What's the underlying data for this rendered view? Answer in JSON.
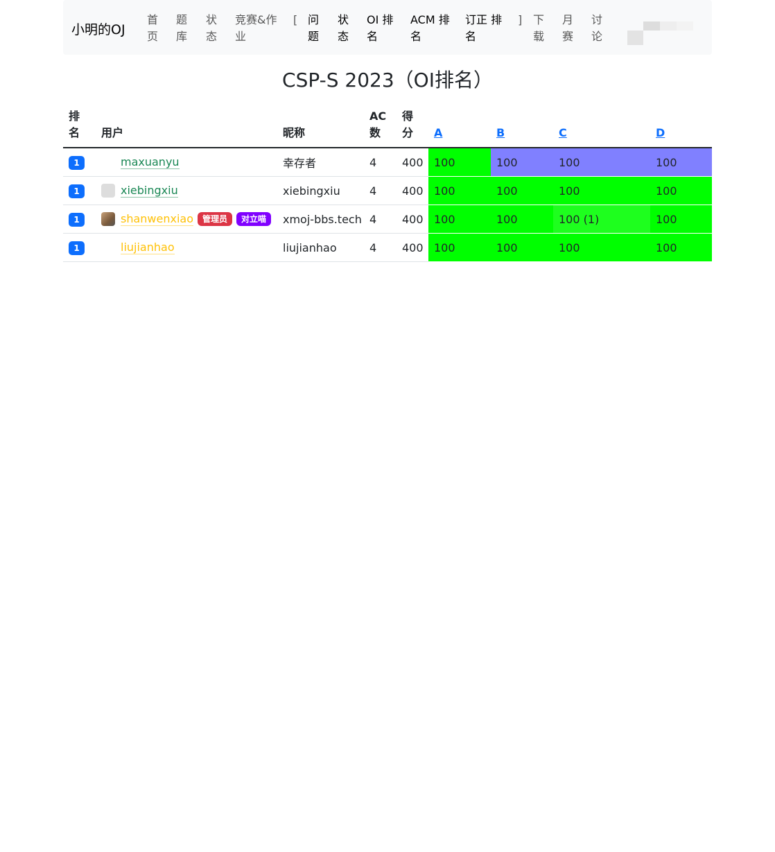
{
  "nav": {
    "brand": "小明的OJ",
    "items": [
      {
        "label": "首页",
        "dark": false
      },
      {
        "label": "题库",
        "dark": false
      },
      {
        "label": "状态",
        "dark": false
      },
      {
        "label": "竞赛&作业",
        "dark": false
      },
      {
        "label": "[",
        "dark": false
      },
      {
        "label": "问题",
        "dark": true
      },
      {
        "label": "状态",
        "dark": true
      },
      {
        "label": "OI 排名",
        "dark": true
      },
      {
        "label": "ACM 排名",
        "dark": true
      },
      {
        "label": "订正 排名",
        "dark": true
      },
      {
        "label": "]",
        "dark": false
      },
      {
        "label": "下载",
        "dark": false
      },
      {
        "label": "月赛",
        "dark": false
      },
      {
        "label": "讨论",
        "dark": false
      }
    ]
  },
  "title": "CSP-S 2023（OI排名）",
  "table": {
    "headers": {
      "rank": "排名",
      "user": "用户",
      "nick": "昵称",
      "ac": "AC数",
      "score": "得分",
      "problems": [
        "A",
        "B",
        "C",
        "D"
      ]
    },
    "colors": {
      "ac": "#00ff00",
      "first_blood": "#8080ff",
      "ac_retry": "#1eff1e"
    },
    "rows": [
      {
        "rank": "1",
        "user": "maxuanyu",
        "user_color": "green",
        "avatar": "none",
        "badges": [],
        "nick": "幸存者",
        "ac": "4",
        "score": "400",
        "cells": [
          {
            "v": "100",
            "c": "ac"
          },
          {
            "v": "100",
            "c": "first_blood"
          },
          {
            "v": "100",
            "c": "first_blood"
          },
          {
            "v": "100",
            "c": "first_blood"
          }
        ]
      },
      {
        "rank": "1",
        "user": "xiebingxiu",
        "user_color": "green",
        "avatar": "default",
        "badges": [],
        "nick": "xiebingxiu",
        "ac": "4",
        "score": "400",
        "cells": [
          {
            "v": "100",
            "c": "ac"
          },
          {
            "v": "100",
            "c": "ac"
          },
          {
            "v": "100",
            "c": "ac"
          },
          {
            "v": "100",
            "c": "ac"
          }
        ]
      },
      {
        "rank": "1",
        "user": "shanwenxiao",
        "user_color": "yellow",
        "avatar": "photo",
        "badges": [
          {
            "label": "管理员",
            "color": "#dc3545"
          },
          {
            "label": "对立喵",
            "color": "#8000ff"
          }
        ],
        "nick": "xmoj-bbs.tech",
        "ac": "4",
        "score": "400",
        "cells": [
          {
            "v": "100",
            "c": "ac"
          },
          {
            "v": "100",
            "c": "ac"
          },
          {
            "v": "100 (1)",
            "c": "ac_retry"
          },
          {
            "v": "100",
            "c": "ac"
          }
        ]
      },
      {
        "rank": "1",
        "user": "liujianhao",
        "user_color": "yellow",
        "avatar": "none",
        "badges": [],
        "nick": "liujianhao",
        "ac": "4",
        "score": "400",
        "cells": [
          {
            "v": "100",
            "c": "ac"
          },
          {
            "v": "100",
            "c": "ac"
          },
          {
            "v": "100",
            "c": "ac"
          },
          {
            "v": "100",
            "c": "ac"
          }
        ]
      }
    ]
  }
}
